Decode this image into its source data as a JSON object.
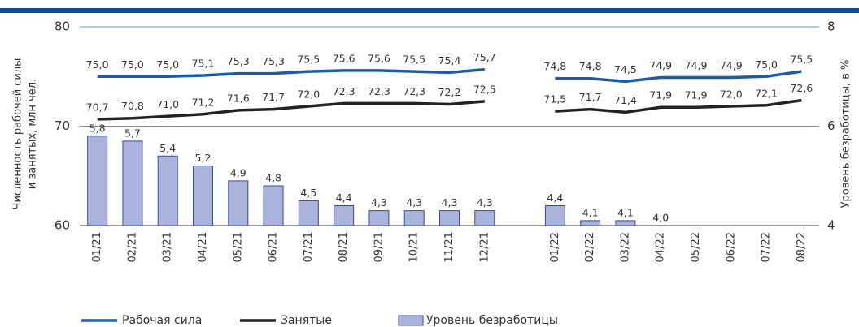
{
  "chart_data": {
    "type": "line",
    "categories": [
      "01/21",
      "02/21",
      "03/21",
      "04/21",
      "05/21",
      "06/21",
      "07/21",
      "08/21",
      "09/21",
      "10/21",
      "11/21",
      "12/21",
      null,
      "01/22",
      "02/22",
      "03/22",
      "04/22",
      "05/22",
      "06/22",
      "07/22",
      "08/22"
    ],
    "ylabel": [
      "Численность рабочей силы",
      "и занятых, млн чел."
    ],
    "y2label": "Уровень безработицы, в %",
    "ylim": [
      60,
      80
    ],
    "yticks": [
      60,
      70,
      80
    ],
    "y2lim": [
      4,
      8
    ],
    "y2ticks": [
      4,
      6,
      8
    ],
    "grid": true,
    "legend": "bottom",
    "series": [
      {
        "name": "Рабочая сила",
        "type": "line",
        "color": "#1f5aa6",
        "values": [
          75.0,
          75.0,
          75.0,
          75.1,
          75.3,
          75.3,
          75.5,
          75.6,
          75.6,
          75.5,
          75.4,
          75.7,
          null,
          74.8,
          74.8,
          74.5,
          74.9,
          74.9,
          74.9,
          75.0,
          75.5
        ],
        "value_labels": [
          "75,0",
          "75,0",
          "75,0",
          "75,1",
          "75,3",
          "75,3",
          "75,5",
          "75,6",
          "75,6",
          "75,5",
          "75,4",
          "75,7",
          null,
          "74,8",
          "74,8",
          "74,5",
          "74,9",
          "74,9",
          "74,9",
          "75,0",
          "75,5"
        ]
      },
      {
        "name": "Занятые",
        "type": "line",
        "color": "#222222",
        "values": [
          70.7,
          70.8,
          71.0,
          71.2,
          71.6,
          71.7,
          72.0,
          72.3,
          72.3,
          72.3,
          72.2,
          72.5,
          null,
          71.5,
          71.7,
          71.4,
          71.9,
          71.9,
          72.0,
          72.1,
          72.6
        ],
        "value_labels": [
          "70,7",
          "70,8",
          "71,0",
          "71,2",
          "71,6",
          "71,7",
          "72,0",
          "72,3",
          "72,3",
          "72,3",
          "72,2",
          "72,5",
          null,
          "71,5",
          "71,7",
          "71,4",
          "71,9",
          "71,9",
          "72,0",
          "72,1",
          "72,6"
        ]
      },
      {
        "name": "Уровень безработицы",
        "type": "bar",
        "axis": "y2",
        "color": "#a9b3dc",
        "values": [
          5.8,
          5.7,
          5.4,
          5.2,
          4.9,
          4.8,
          4.5,
          4.4,
          4.3,
          4.3,
          4.3,
          4.3,
          null,
          4.4,
          4.1,
          4.1,
          4.0,
          null,
          null,
          null,
          null
        ],
        "value_labels": [
          "5,8",
          "5,7",
          "5,4",
          "5,2",
          "4,9",
          "4,8",
          "4,5",
          "4,4",
          "4,3",
          "4,3",
          "4,3",
          "4,3",
          null,
          "4,4",
          "4,1",
          "4,1",
          "4,0",
          null,
          null,
          null,
          null
        ]
      }
    ]
  }
}
